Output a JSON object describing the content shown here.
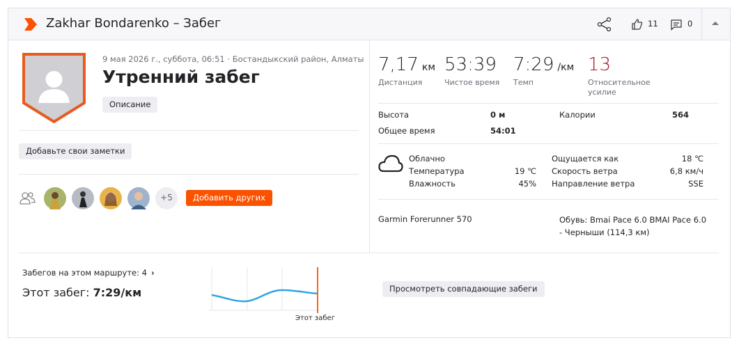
{
  "header": {
    "title": "Zakhar Bondarenko – Забег",
    "likes": 11,
    "comments": 0
  },
  "activity": {
    "date_location": "9 мая 2026 г., суббота, 06:51 · Бостандыкский район, Алматы",
    "title": "Утренний забег",
    "description_button": "Описание"
  },
  "notes_button": "Добавьте свои заметки",
  "athletes": {
    "more": "+5",
    "add_button": "Добавить других"
  },
  "stats": [
    {
      "value": "7,17",
      "unit": "км",
      "label": "Дистанция"
    },
    {
      "value": "53:39",
      "label": "Чистое время"
    },
    {
      "value": "7:29",
      "unit": "/км",
      "label": "Темп"
    },
    {
      "value": "13",
      "label": "Относительное усилие"
    }
  ],
  "details": [
    {
      "label": "Высота",
      "value": "0 м"
    },
    {
      "label": "Калории",
      "value": "564"
    },
    {
      "label": "Общее время",
      "value": "54:01"
    }
  ],
  "weather": {
    "condition": "Облачно",
    "left": [
      {
        "label": "Температура",
        "value": "19 ℃"
      },
      {
        "label": "Влажность",
        "value": "45%"
      }
    ],
    "right": [
      {
        "label": "Ощущается как",
        "value": "18 ℃"
      },
      {
        "label": "Скорость ветра",
        "value": "6,8 км/ч"
      },
      {
        "label": "Направление ветра",
        "value": "SSE"
      }
    ]
  },
  "device": "Garmin Forerunner 570",
  "shoes": "Обувь: Bmai Pace 6.0 BMAI Pace 6.0 - Черныши (114,3 км)",
  "route": {
    "count_text": "Забегов на этом маршруте: 4",
    "this_run_label": "Этот забег:",
    "this_run_value": "7:29/км",
    "chart_marker": "Этот забег",
    "compare_button": "Просмотреть совпадающие забеги"
  }
}
